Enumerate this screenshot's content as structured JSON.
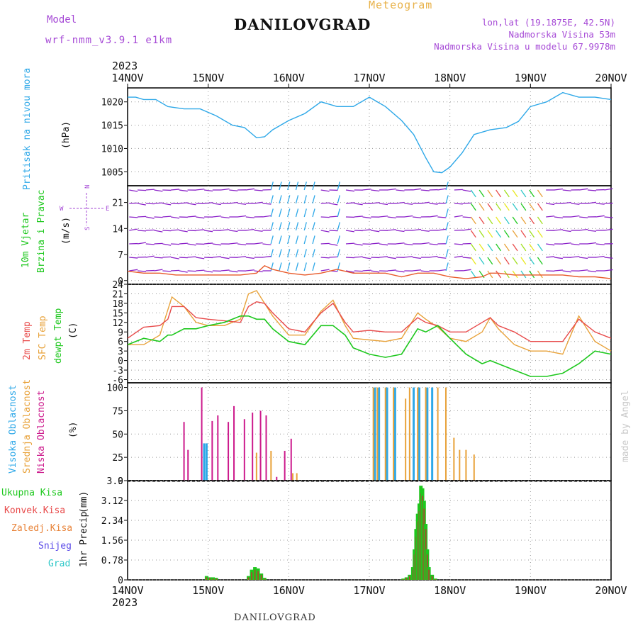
{
  "header": {
    "model_label": "Model",
    "model_name": "wrf-nmm_v3.9.1 e1km",
    "meteogram_title": "Meteogram",
    "station": "DANILOVGRAD",
    "lonlat": "lon,lat (19.1875E, 42.5N)",
    "elevation": "Nadmorska Visina 53m",
    "model_elevation": "Nadmorska Visina u modelu 67.9978m",
    "made_by": "made by Angel"
  },
  "time_axis": {
    "year": "2023",
    "labels": [
      "14NOV",
      "15NOV",
      "16NOV",
      "17NOV",
      "18NOV",
      "19NOV",
      "20NOV"
    ]
  },
  "footer": {
    "station": "DANILOVGRAD"
  },
  "colors": {
    "pressure": "#2ea8e8",
    "t2m": "#e84a4a",
    "sfc": "#e8a23a",
    "dew": "#1ec81e",
    "cloud_high": "#2ea8e8",
    "cloud_mid": "#e8a23a",
    "cloud_low": "#cc1a8c",
    "precip_total": "#1ec81e",
    "precip_conv": "#a0522d",
    "wind_barb": "#8a1fc8",
    "speed_line": "#e85a2a"
  },
  "chart_data": [
    {
      "type": "line",
      "name": "pressure",
      "ylabel": "Pritisak na nivou mora",
      "unit": "(hPa)",
      "ylim": [
        1002,
        1023
      ],
      "yticks": [
        1005,
        1010,
        1015,
        1020
      ],
      "x_days": [
        0,
        0.1,
        0.2,
        0.35,
        0.5,
        0.7,
        0.9,
        1.1,
        1.3,
        1.45,
        1.6,
        1.7,
        1.8,
        2.0,
        2.2,
        2.4,
        2.6,
        2.8,
        3.0,
        3.2,
        3.4,
        3.55,
        3.7,
        3.8,
        3.9,
        4.0,
        4.15,
        4.3,
        4.5,
        4.7,
        4.85,
        5.0,
        5.2,
        5.4,
        5.6,
        5.8,
        6.0
      ],
      "y": [
        1021,
        1021,
        1020.5,
        1020.5,
        1019,
        1018.5,
        1018.5,
        1017,
        1015,
        1014.5,
        1012.3,
        1012.5,
        1014,
        1016,
        1017.5,
        1020,
        1019,
        1019,
        1021,
        1019,
        1016,
        1013,
        1008,
        1005,
        1004.8,
        1006,
        1009,
        1013,
        1014,
        1014.5,
        1015.8,
        1019,
        1020,
        1022,
        1021,
        1021,
        1020.5
      ]
    },
    {
      "type": "line",
      "name": "wind",
      "ylabel": "10m Vjetar Brzina i Pravac",
      "unit": "(m/s)",
      "compass": [
        "N",
        "W",
        "E",
        "S"
      ],
      "ylim": [
        -1,
        25.5
      ],
      "yticks": [
        0,
        7,
        14,
        21
      ],
      "x_days": [
        0,
        0.2,
        0.4,
        0.6,
        0.8,
        1.0,
        1.2,
        1.4,
        1.6,
        1.7,
        1.8,
        2.0,
        2.2,
        2.4,
        2.6,
        2.8,
        3.0,
        3.2,
        3.4,
        3.6,
        3.8,
        4.0,
        4.2,
        4.4,
        4.5,
        4.6,
        4.8,
        5.0,
        5.2,
        5.4,
        5.6,
        5.8,
        6.0
      ],
      "speed": [
        2.5,
        2,
        2,
        1.5,
        1.5,
        1.5,
        1.5,
        1.5,
        2,
        4,
        3,
        2,
        1.5,
        2,
        3,
        2,
        2,
        2,
        1,
        2,
        2,
        1,
        0.5,
        1,
        2,
        2,
        1.5,
        1.5,
        1.5,
        1.5,
        1,
        1,
        0.5
      ]
    },
    {
      "type": "line",
      "name": "temperature",
      "legend": [
        "2m Temp",
        "SFC Temp",
        "dewpt Temp"
      ],
      "unit": "(C)",
      "ylim": [
        -7,
        24
      ],
      "yticks": [
        -6,
        -3,
        0,
        3,
        6,
        9,
        12,
        15,
        18,
        21,
        24
      ],
      "x_days": [
        0,
        0.2,
        0.4,
        0.5,
        0.55,
        0.7,
        0.85,
        1.0,
        1.2,
        1.4,
        1.5,
        1.6,
        1.7,
        1.8,
        2.0,
        2.2,
        2.4,
        2.55,
        2.7,
        2.8,
        3.0,
        3.2,
        3.4,
        3.6,
        3.7,
        3.85,
        4.0,
        4.2,
        4.4,
        4.5,
        4.6,
        4.8,
        5.0,
        5.2,
        5.4,
        5.6,
        5.8,
        6.0
      ],
      "t2m": [
        7,
        10.5,
        11,
        13,
        17,
        17,
        13.5,
        13,
        12.5,
        12,
        17,
        18.5,
        18,
        15,
        10,
        9,
        15,
        18,
        12,
        9,
        9.5,
        9,
        9,
        13.5,
        12,
        11,
        9,
        9,
        12,
        13.5,
        11,
        9,
        6,
        6,
        6,
        13,
        9,
        7
      ],
      "sfc": [
        5,
        5,
        8,
        16,
        20,
        17,
        12,
        11,
        11,
        13,
        21,
        22,
        18,
        14,
        8,
        8,
        15.5,
        19,
        11,
        7,
        6.5,
        6,
        7,
        15,
        13,
        10.5,
        7,
        6,
        9,
        13.5,
        10,
        5,
        3,
        3,
        2,
        14,
        6,
        3
      ],
      "dew": [
        5,
        7,
        6,
        8,
        8,
        10,
        10,
        11,
        12,
        14,
        14,
        13,
        13,
        10,
        6,
        5,
        11,
        11,
        8,
        4,
        2,
        1,
        2,
        10,
        9,
        11,
        7,
        2,
        -1,
        0,
        -1,
        -3,
        -5,
        -5,
        -4,
        -1,
        3,
        2
      ]
    },
    {
      "type": "bar",
      "name": "clouds",
      "legend": [
        "Visoka Oblacnost",
        "Srednja Oblacnost",
        "Niska Oblacnost"
      ],
      "unit": "(%)",
      "ylim": [
        0,
        105
      ],
      "yticks": [
        0,
        25,
        50,
        75,
        100
      ],
      "low": [
        [
          0.7,
          63
        ],
        [
          0.75,
          33
        ],
        [
          0.92,
          100
        ],
        [
          1.05,
          64
        ],
        [
          1.12,
          70
        ],
        [
          1.25,
          63
        ],
        [
          1.32,
          80
        ],
        [
          1.45,
          66
        ],
        [
          1.55,
          73
        ],
        [
          1.65,
          75
        ],
        [
          1.72,
          70
        ],
        [
          1.85,
          4
        ],
        [
          1.95,
          32
        ],
        [
          2.03,
          45
        ]
      ],
      "mid": [
        [
          1.6,
          30
        ],
        [
          1.65,
          44
        ],
        [
          1.78,
          32
        ],
        [
          2.05,
          8
        ],
        [
          2.1,
          8
        ],
        [
          3.05,
          100
        ],
        [
          3.1,
          100
        ],
        [
          3.2,
          100
        ],
        [
          3.3,
          100
        ],
        [
          3.45,
          88
        ],
        [
          3.5,
          100
        ],
        [
          3.6,
          100
        ],
        [
          3.7,
          100
        ],
        [
          3.85,
          100
        ],
        [
          3.95,
          100
        ],
        [
          4.05,
          46
        ],
        [
          4.12,
          33
        ],
        [
          4.2,
          33
        ],
        [
          4.3,
          28
        ]
      ],
      "high": [
        [
          0.95,
          40
        ],
        [
          0.98,
          40
        ],
        [
          3.07,
          100
        ],
        [
          3.12,
          100
        ],
        [
          3.22,
          100
        ],
        [
          3.32,
          100
        ],
        [
          3.55,
          100
        ],
        [
          3.62,
          100
        ],
        [
          3.72,
          100
        ],
        [
          3.78,
          100
        ]
      ]
    },
    {
      "type": "bar",
      "name": "precipitation",
      "legend": [
        "Ukupna Kisa",
        "Konvek.Kisa",
        "Zaledj.Kisa",
        "Snijeg",
        "Grad"
      ],
      "ylabel": "1hr Precip",
      "unit": "(mm)",
      "ylim": [
        0,
        3.9
      ],
      "yticks": [
        0,
        0.78,
        1.56,
        2.34,
        3.12,
        3.9
      ],
      "x_days": [
        0.98,
        1.02,
        1.06,
        1.1,
        1.5,
        1.54,
        1.58,
        1.62,
        1.66,
        1.7,
        3.42,
        3.46,
        3.5,
        3.54,
        3.56,
        3.58,
        3.6,
        3.62,
        3.64,
        3.66,
        3.68,
        3.7,
        3.72,
        3.74,
        3.78,
        3.82
      ],
      "total": [
        0.15,
        0.1,
        0.1,
        0.08,
        0.15,
        0.4,
        0.5,
        0.45,
        0.25,
        0.08,
        0.05,
        0.1,
        0.2,
        0.5,
        1.2,
        2.0,
        2.6,
        3.0,
        3.7,
        3.6,
        3.1,
        2.2,
        1.2,
        0.5,
        0.2,
        0.05
      ],
      "convective": [
        0.1,
        0.08,
        0.05,
        0.05,
        0.1,
        0.3,
        0.4,
        0.35,
        0.2,
        0.05,
        0.03,
        0.08,
        0.15,
        0.4,
        1.0,
        1.7,
        2.3,
        2.7,
        3.4,
        3.3,
        2.8,
        2.0,
        1.0,
        0.4,
        0.15,
        0.03
      ]
    }
  ]
}
